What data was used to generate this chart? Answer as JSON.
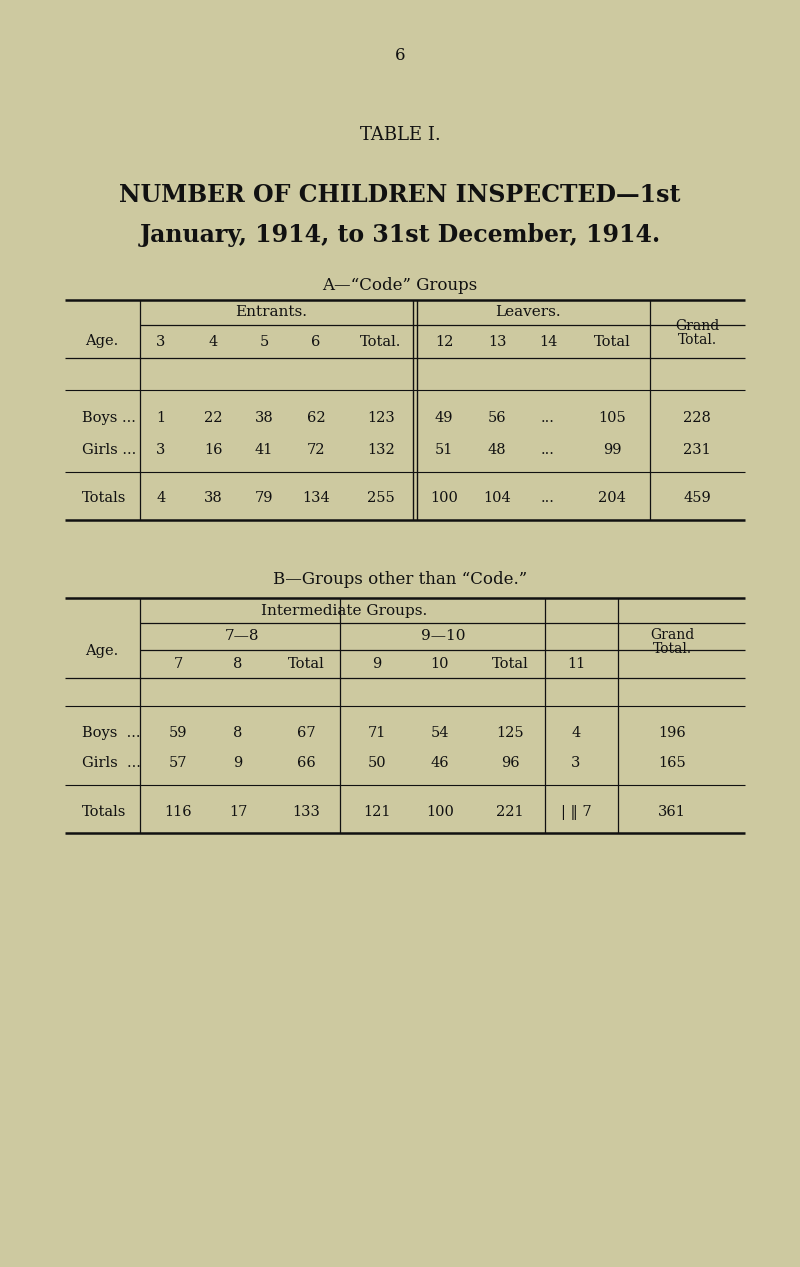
{
  "page_number": "6",
  "table_title": "TABLE I.",
  "main_title_line1": "NUMBER OF CHILDREN INSPECTED—1st",
  "main_title_line2": "January, 1914, to 31st December, 1914.",
  "section_a_title": "A—“Code” Groups",
  "section_b_title": "B—Groups other than “Code.”",
  "bg_color": "#cdc9a0",
  "text_color": "#111111",
  "table_a_rows": [
    [
      "Boys ...",
      "1",
      "22",
      "38",
      "62",
      "123",
      "49",
      "56",
      "...",
      "105",
      "228"
    ],
    [
      "Girls ...",
      "3",
      "16",
      "41",
      "72",
      "132",
      "51",
      "48",
      "...",
      "99",
      "231"
    ],
    [
      "Totals",
      "4",
      "38",
      "79",
      "134",
      "255",
      "100",
      "104",
      "...",
      "204",
      "459"
    ]
  ],
  "table_b_rows": [
    [
      "Boys  ...",
      "59",
      "8",
      "67",
      "71",
      "54",
      "125",
      "4",
      "196"
    ],
    [
      "Girls  ...",
      "57",
      "9",
      "66",
      "50",
      "46",
      "96",
      "3",
      "165"
    ],
    [
      "Totals",
      "116",
      "17",
      "133",
      "121",
      "100",
      "221",
      "| ‖ 7",
      "361"
    ]
  ]
}
